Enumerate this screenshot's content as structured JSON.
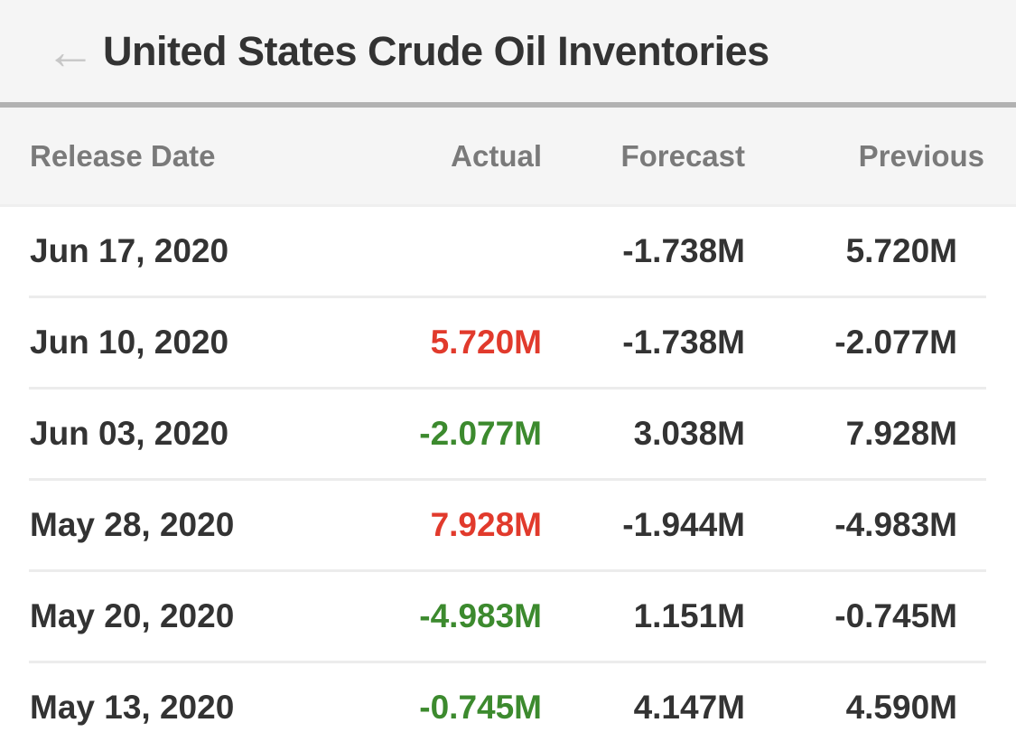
{
  "header": {
    "back_icon": "←",
    "title": "United States Crude Oil Inventories"
  },
  "table": {
    "columns": [
      "Release Date",
      "Actual",
      "Forecast",
      "Previous"
    ],
    "rows": [
      {
        "release_date": "Jun 17, 2020",
        "actual": "",
        "actual_color": "",
        "forecast": "-1.738M",
        "previous": "5.720M"
      },
      {
        "release_date": "Jun 10, 2020",
        "actual": "5.720M",
        "actual_color": "red",
        "forecast": "-1.738M",
        "previous": "-2.077M"
      },
      {
        "release_date": "Jun 03, 2020",
        "actual": "-2.077M",
        "actual_color": "green",
        "forecast": "3.038M",
        "previous": "7.928M"
      },
      {
        "release_date": "May 28, 2020",
        "actual": "7.928M",
        "actual_color": "red",
        "forecast": "-1.944M",
        "previous": "-4.983M"
      },
      {
        "release_date": "May 20, 2020",
        "actual": "-4.983M",
        "actual_color": "green",
        "forecast": "1.151M",
        "previous": "-0.745M"
      },
      {
        "release_date": "May 13, 2020",
        "actual": "-0.745M",
        "actual_color": "green",
        "forecast": "4.147M",
        "previous": "4.590M"
      }
    ]
  },
  "colors": {
    "red": "#e13a2c",
    "green": "#3c8a2e",
    "text_dark": "#333333",
    "header_text": "#7a7a7a",
    "header_bg": "#f5f5f5"
  }
}
